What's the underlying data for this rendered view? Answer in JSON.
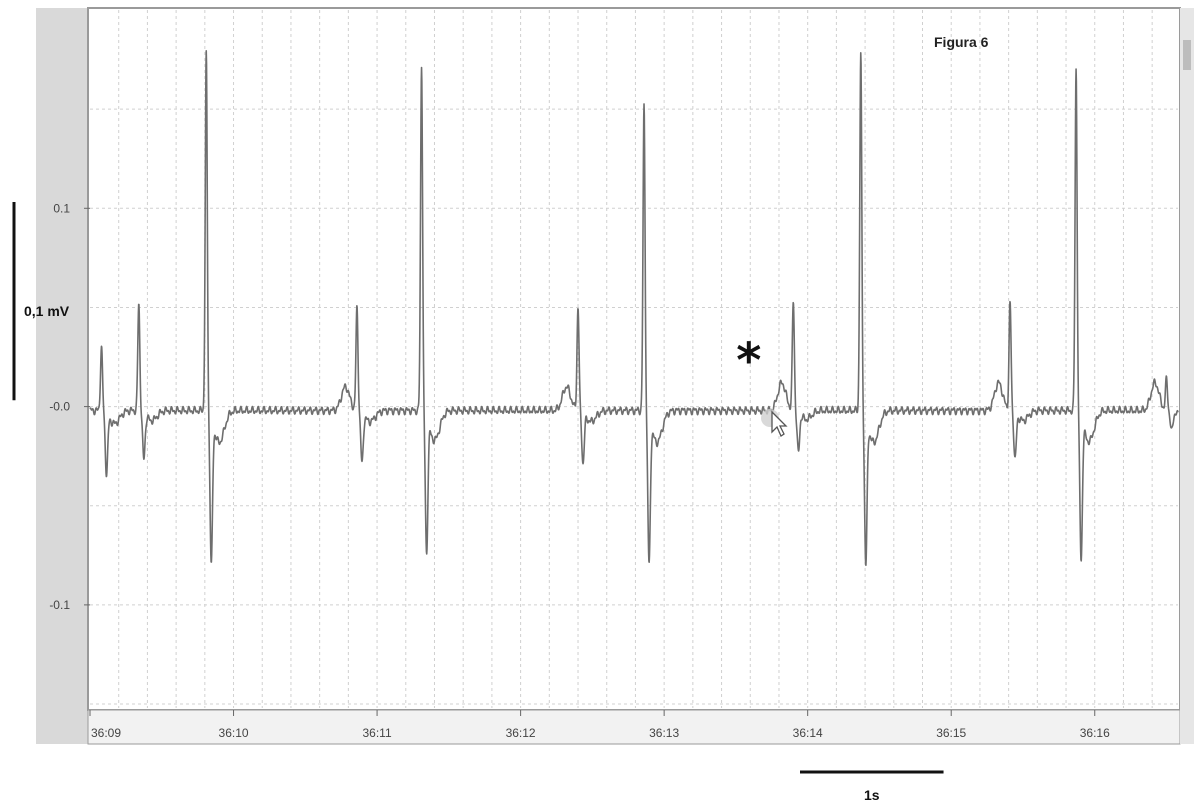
{
  "chart_data": {
    "type": "line",
    "title": "Figura 6",
    "xlabel": "",
    "ylabel": "",
    "x_ticks": [
      "36:09",
      "36:10",
      "36:11",
      "36:12",
      "36:13",
      "36:14",
      "36:15",
      "36:16"
    ],
    "x_tick_seconds": [
      0,
      1,
      2,
      3,
      4,
      5,
      6,
      7
    ],
    "xlim": [
      0,
      7.58
    ],
    "y_ticks": [
      0.1,
      -0.0,
      -0.1
    ],
    "y_tick_labels": [
      "0.1",
      "-0.0",
      "-0.1"
    ],
    "ylim": [
      -0.152,
      0.2
    ],
    "grid": true,
    "series": [
      {
        "color": "#777777",
        "baseline": -0.002,
        "qrs_complexes": [
          {
            "t": 0.08,
            "r": 0.03,
            "s": -0.032,
            "t_wave": 0.0
          },
          {
            "t": 0.34,
            "r": 0.052,
            "s": -0.025,
            "t_wave": 0.0
          },
          {
            "t": 0.81,
            "r": 0.178,
            "s": -0.075,
            "t_wave": 0.0
          },
          {
            "t": 1.86,
            "r": 0.05,
            "s": -0.027,
            "t_wave": 0.012
          },
          {
            "t": 2.31,
            "r": 0.173,
            "s": -0.07,
            "t_wave": 0.0
          },
          {
            "t": 3.4,
            "r": 0.05,
            "s": -0.027,
            "t_wave": 0.012
          },
          {
            "t": 3.86,
            "r": 0.152,
            "s": -0.075,
            "t_wave": 0.0
          },
          {
            "t": 4.9,
            "r": 0.053,
            "s": -0.022,
            "t_wave": 0.014
          },
          {
            "t": 5.37,
            "r": 0.178,
            "s": -0.075,
            "t_wave": 0.0
          },
          {
            "t": 6.41,
            "r": 0.052,
            "s": -0.025,
            "t_wave": 0.014
          },
          {
            "t": 6.87,
            "r": 0.171,
            "s": -0.073,
            "t_wave": 0.0
          },
          {
            "t": 7.5,
            "r": 0.014,
            "s": -0.012,
            "t_wave": 0.014
          }
        ]
      }
    ],
    "annotations": {
      "asterisk": "*",
      "asterisk_at": [
        4.59,
        0.022
      ],
      "scale_bar_vertical_label": "0,1 mV",
      "scale_bar_vertical_mv": 0.1,
      "scale_bar_horizontal_label": "1s",
      "scale_bar_horizontal_s": 1
    }
  }
}
